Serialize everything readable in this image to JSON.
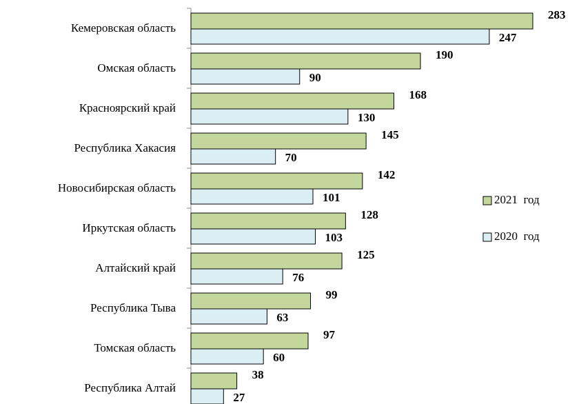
{
  "chart_data": {
    "type": "bar",
    "orientation": "horizontal",
    "categories": [
      "Кемеровская область",
      "Омская область",
      "Красноярский край",
      "Республика Хакасия",
      "Новосибирская область",
      "Иркутская область",
      "Алтайский  край",
      "Республика Тыва",
      "Томская область",
      "Республика Алтай"
    ],
    "series": [
      {
        "name": "2021  год",
        "color": "#c3d69b",
        "values": [
          283,
          190,
          168,
          145,
          142,
          128,
          125,
          99,
          97,
          38
        ]
      },
      {
        "name": "2020  год",
        "color": "#dbeef4",
        "values": [
          247,
          90,
          130,
          70,
          101,
          103,
          76,
          63,
          60,
          27
        ]
      }
    ],
    "legend": "right"
  }
}
